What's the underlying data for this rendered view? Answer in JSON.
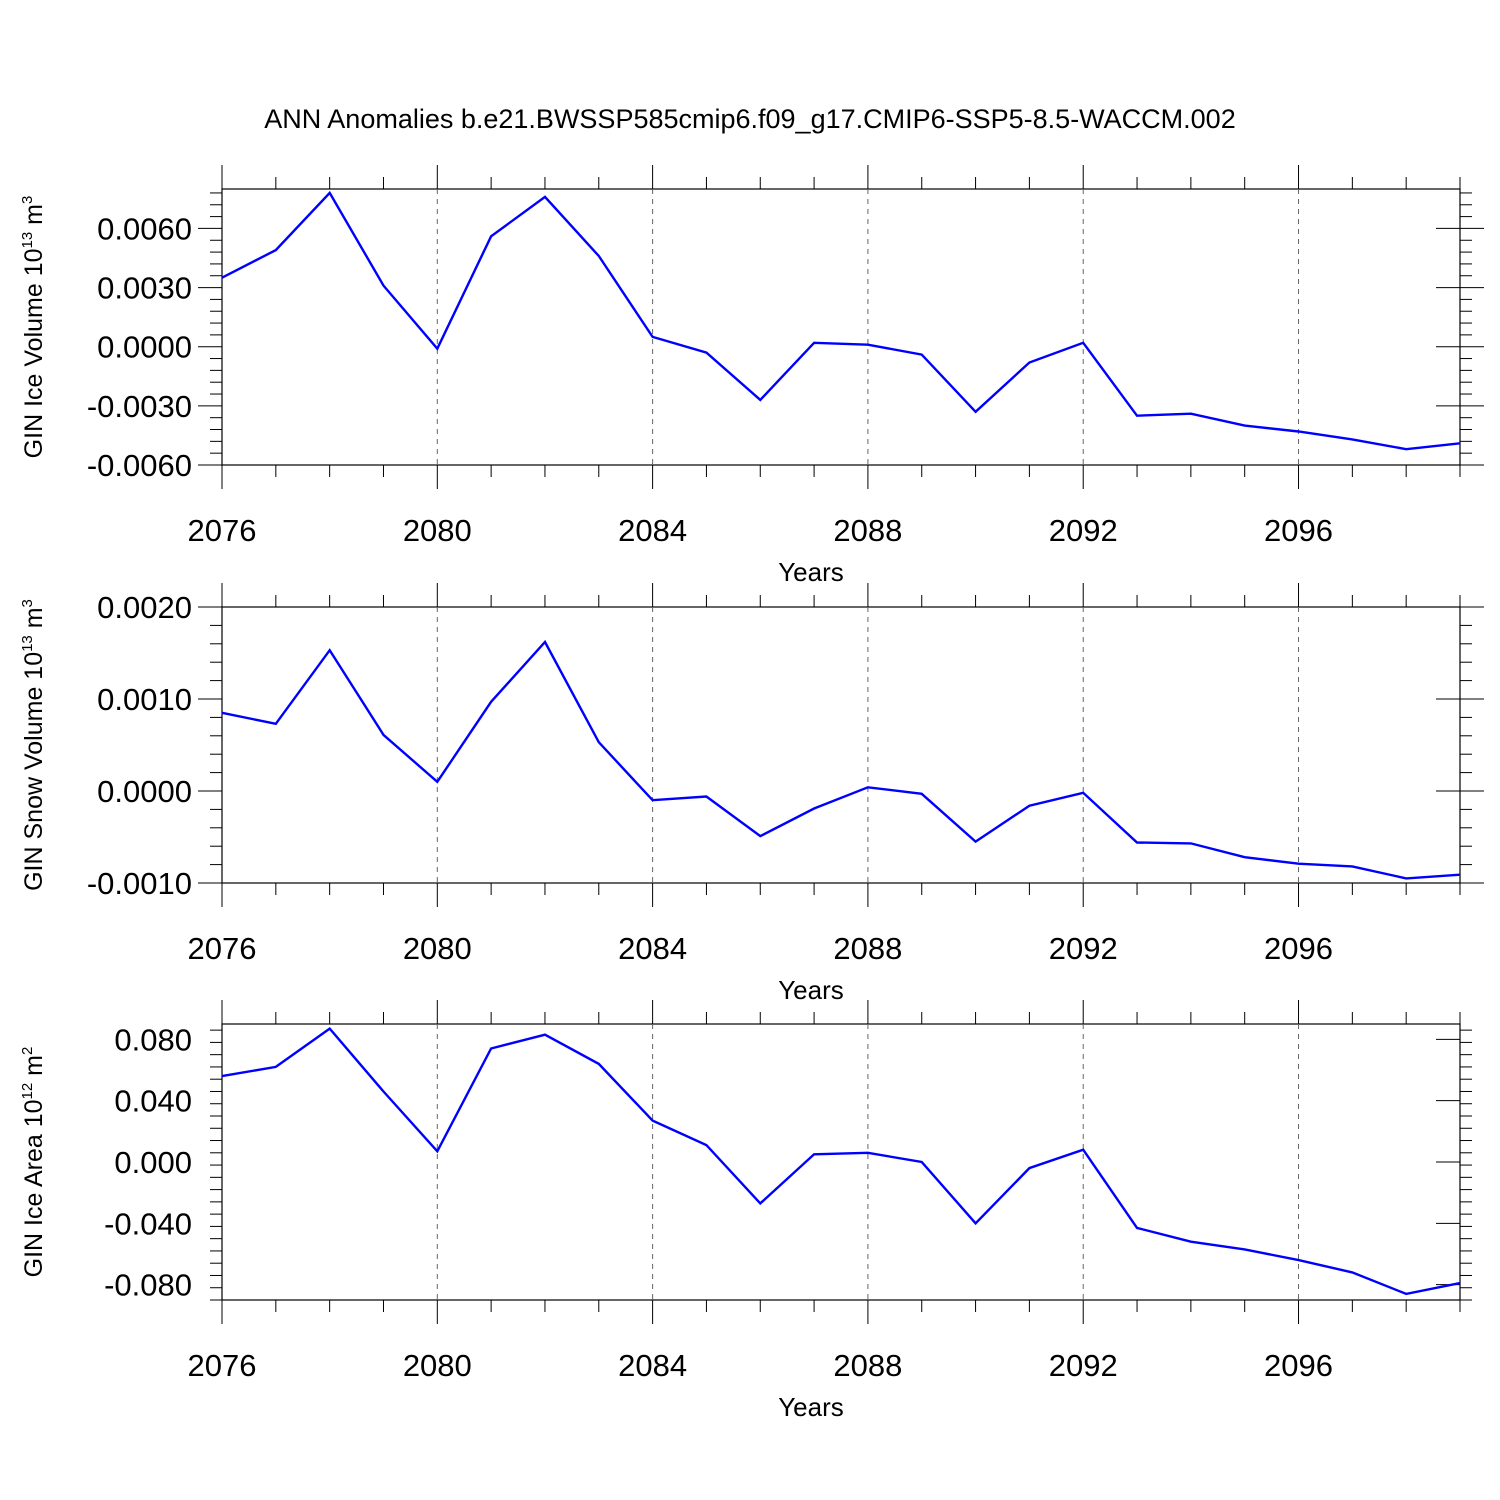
{
  "figure": {
    "title": "ANN Anomalies b.e21.BWSSP585cmip6.f09_g17.CMIP6-SSP5-8.5-WACCM.002",
    "line_color": "#0000ff"
  },
  "chart_data": [
    {
      "type": "line",
      "title": "",
      "xlabel": "Years",
      "ylabel": {
        "base": "GIN Ice Volume 10",
        "exp": "13",
        "unit": " m",
        "unit_exp": "3"
      },
      "x": [
        2076,
        2077,
        2078,
        2079,
        2080,
        2081,
        2082,
        2083,
        2084,
        2085,
        2086,
        2087,
        2088,
        2089,
        2090,
        2091,
        2092,
        2093,
        2094,
        2095,
        2096,
        2097,
        2098,
        2099
      ],
      "series": [
        {
          "values": [
            0.0035,
            0.0049,
            0.0078,
            0.0031,
            -0.0001,
            0.0056,
            0.0076,
            0.0046,
            0.0005,
            -0.0003,
            -0.0027,
            0.0002,
            0.0001,
            -0.0004,
            -0.0033,
            -0.0008,
            0.0002,
            -0.0035,
            -0.0034,
            -0.004,
            -0.0043,
            -0.0047,
            -0.0052,
            -0.0049
          ]
        }
      ],
      "xlim": [
        2076,
        2099
      ],
      "ylim": [
        -0.006,
        0.008
      ],
      "xticks": [
        2076,
        2080,
        2084,
        2088,
        2092,
        2096
      ],
      "xtick_labels": [
        "2076",
        "2080",
        "2084",
        "2088",
        "2092",
        "2096"
      ],
      "yticks": [
        -0.006,
        -0.003,
        0.0,
        0.003,
        0.006
      ],
      "ytick_labels": [
        "-0.0060",
        "-0.0030",
        "0.0000",
        "0.0030",
        "0.0060"
      ],
      "grid": "dashed vertical at major x ticks"
    },
    {
      "type": "line",
      "title": "",
      "xlabel": "Years",
      "ylabel": {
        "base": "GIN Snow Volume 10",
        "exp": "13",
        "unit": " m",
        "unit_exp": "3"
      },
      "x": [
        2076,
        2077,
        2078,
        2079,
        2080,
        2081,
        2082,
        2083,
        2084,
        2085,
        2086,
        2087,
        2088,
        2089,
        2090,
        2091,
        2092,
        2093,
        2094,
        2095,
        2096,
        2097,
        2098,
        2099
      ],
      "series": [
        {
          "values": [
            0.00085,
            0.00073,
            0.00153,
            0.00061,
            0.0001,
            0.00097,
            0.00162,
            0.00053,
            -0.0001,
            -6e-05,
            -0.00049,
            -0.00019,
            4e-05,
            -3e-05,
            -0.00055,
            -0.00016,
            -2e-05,
            -0.00056,
            -0.00057,
            -0.00072,
            -0.00079,
            -0.00082,
            -0.00095,
            -0.00091
          ]
        }
      ],
      "xlim": [
        2076,
        2099
      ],
      "ylim": [
        -0.001,
        0.002
      ],
      "xticks": [
        2076,
        2080,
        2084,
        2088,
        2092,
        2096
      ],
      "xtick_labels": [
        "2076",
        "2080",
        "2084",
        "2088",
        "2092",
        "2096"
      ],
      "yticks": [
        -0.001,
        0.0,
        0.001,
        0.002
      ],
      "ytick_labels": [
        "-0.0010",
        "0.0000",
        "0.0010",
        "0.0020"
      ],
      "grid": "dashed vertical at major x ticks"
    },
    {
      "type": "line",
      "title": "",
      "xlabel": "Years",
      "ylabel": {
        "base": "GIN Ice Area 10",
        "exp": "12",
        "unit": " m",
        "unit_exp": "2"
      },
      "x": [
        2076,
        2077,
        2078,
        2079,
        2080,
        2081,
        2082,
        2083,
        2084,
        2085,
        2086,
        2087,
        2088,
        2089,
        2090,
        2091,
        2092,
        2093,
        2094,
        2095,
        2096,
        2097,
        2098,
        2099
      ],
      "series": [
        {
          "values": [
            0.056,
            0.062,
            0.087,
            0.046,
            0.007,
            0.074,
            0.083,
            0.064,
            0.027,
            0.011,
            -0.027,
            0.005,
            0.006,
            0.0,
            -0.04,
            -0.004,
            0.008,
            -0.043,
            -0.052,
            -0.057,
            -0.064,
            -0.072,
            -0.086,
            -0.079
          ]
        }
      ],
      "xlim": [
        2076,
        2099
      ],
      "ylim": [
        -0.09,
        0.09
      ],
      "xticks": [
        2076,
        2080,
        2084,
        2088,
        2092,
        2096
      ],
      "xtick_labels": [
        "2076",
        "2080",
        "2084",
        "2088",
        "2092",
        "2096"
      ],
      "yticks": [
        -0.08,
        -0.04,
        0.0,
        0.04,
        0.08
      ],
      "ytick_labels": [
        "-0.080",
        "-0.040",
        "0.000",
        "0.040",
        "0.080"
      ],
      "grid": "dashed vertical at major x ticks"
    }
  ]
}
